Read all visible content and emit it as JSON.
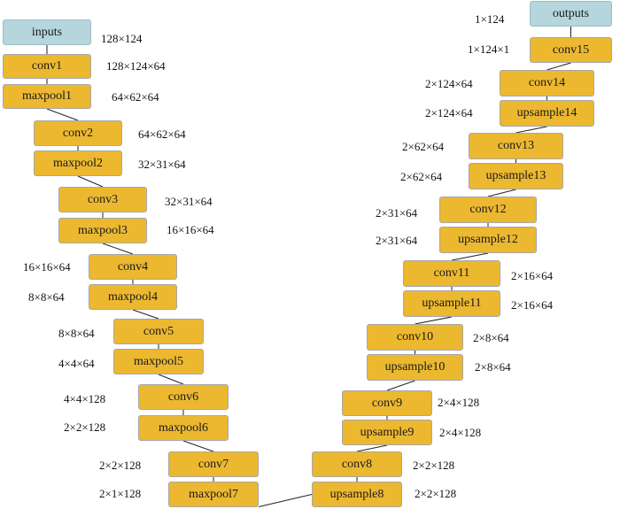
{
  "diagram": {
    "input_label": "inputs",
    "output_label": "outputs",
    "encoder": [
      {
        "id": "inputs",
        "label": "inputs",
        "kind": "io",
        "dim": "128×124"
      },
      {
        "id": "conv1",
        "label": "conv1",
        "kind": "layer",
        "dim": "128×124×64"
      },
      {
        "id": "maxpool1",
        "label": "maxpool1",
        "kind": "layer",
        "dim": "64×62×64"
      },
      {
        "id": "conv2",
        "label": "conv2",
        "kind": "layer",
        "dim": "64×62×64"
      },
      {
        "id": "maxpool2",
        "label": "maxpool2",
        "kind": "layer",
        "dim": "32×31×64"
      },
      {
        "id": "conv3",
        "label": "conv3",
        "kind": "layer",
        "dim": "32×31×64"
      },
      {
        "id": "maxpool3",
        "label": "maxpool3",
        "kind": "layer",
        "dim": "16×16×64"
      },
      {
        "id": "conv4",
        "label": "conv4",
        "kind": "layer",
        "dim": "16×16×64"
      },
      {
        "id": "maxpool4",
        "label": "maxpool4",
        "kind": "layer",
        "dim": "8×8×64"
      },
      {
        "id": "conv5",
        "label": "conv5",
        "kind": "layer",
        "dim": "8×8×64"
      },
      {
        "id": "maxpool5",
        "label": "maxpool5",
        "kind": "layer",
        "dim": "4×4×64"
      },
      {
        "id": "conv6",
        "label": "conv6",
        "kind": "layer",
        "dim": "4×4×128"
      },
      {
        "id": "maxpool6",
        "label": "maxpool6",
        "kind": "layer",
        "dim": "2×2×128"
      },
      {
        "id": "conv7",
        "label": "conv7",
        "kind": "layer",
        "dim": "2×2×128"
      },
      {
        "id": "maxpool7",
        "label": "maxpool7",
        "kind": "layer",
        "dim": "2×1×128"
      }
    ],
    "decoder": [
      {
        "id": "upsample8",
        "label": "upsample8",
        "kind": "layer",
        "dim": "2×2×128"
      },
      {
        "id": "conv8",
        "label": "conv8",
        "kind": "layer",
        "dim": "2×2×128"
      },
      {
        "id": "upsample9",
        "label": "upsample9",
        "kind": "layer",
        "dim": "2×4×128"
      },
      {
        "id": "conv9",
        "label": "conv9",
        "kind": "layer",
        "dim": "2×4×128"
      },
      {
        "id": "upsample10",
        "label": "upsample10",
        "kind": "layer",
        "dim": "2×8×64"
      },
      {
        "id": "conv10",
        "label": "conv10",
        "kind": "layer",
        "dim": "2×8×64"
      },
      {
        "id": "upsample11",
        "label": "upsample11",
        "kind": "layer",
        "dim": "2×16×64"
      },
      {
        "id": "conv11",
        "label": "conv11",
        "kind": "layer",
        "dim": "2×16×64"
      },
      {
        "id": "upsample12",
        "label": "upsample12",
        "kind": "layer",
        "dim": "2×31×64"
      },
      {
        "id": "conv12",
        "label": "conv12",
        "kind": "layer",
        "dim": "2×31×64"
      },
      {
        "id": "upsample13",
        "label": "upsample13",
        "kind": "layer",
        "dim": "2×62×64"
      },
      {
        "id": "conv13",
        "label": "conv13",
        "kind": "layer",
        "dim": "2×62×64"
      },
      {
        "id": "upsample14",
        "label": "upsample14",
        "kind": "layer",
        "dim": "2×124×64"
      },
      {
        "id": "conv14",
        "label": "conv14",
        "kind": "layer",
        "dim": "2×124×64"
      },
      {
        "id": "conv15",
        "label": "conv15",
        "kind": "layer",
        "dim": "1×124×1"
      },
      {
        "id": "outputs",
        "label": "outputs",
        "kind": "io",
        "dim": "1×124"
      }
    ],
    "colors": {
      "layer_fill": "#ecb830",
      "layer_border": "#a7a7a7",
      "io_fill": "#b4d6dc",
      "edge": "#222222"
    }
  }
}
